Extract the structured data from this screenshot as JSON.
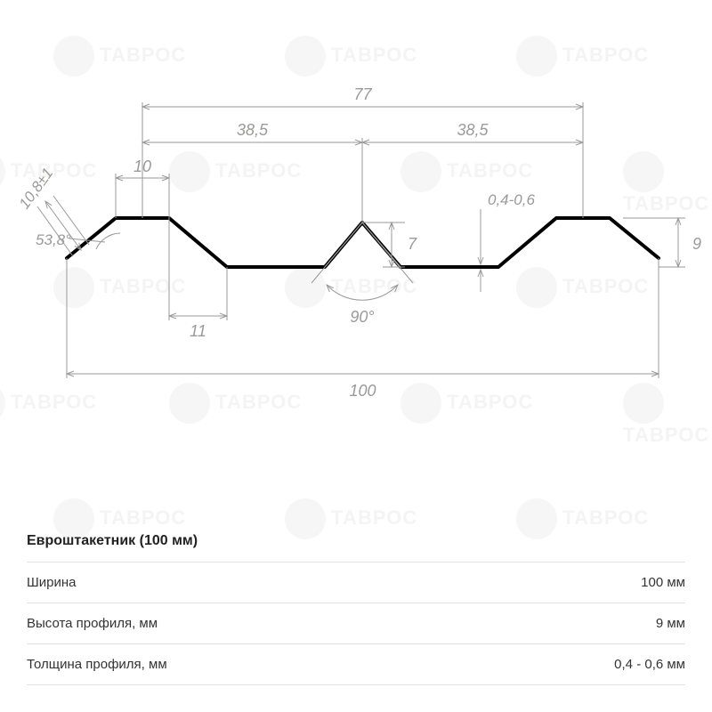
{
  "diagram": {
    "type": "technical-profile-drawing",
    "stroke_color": "#000000",
    "stroke_width": 4,
    "dim_color": "#9a9a98",
    "dim_width": 1,
    "dim_font": "italic 18px Arial",
    "background_color": "#ffffff",
    "watermark_text": "ТАВРОС",
    "watermark_color": "#f3f3f3",
    "labels": {
      "overall_width": "100",
      "top_width": "77",
      "half_left": "38,5",
      "half_right": "38,5",
      "top_flat": "10",
      "left_lip": "10,8±1",
      "left_angle": "53,8°",
      "bottom_offset": "11",
      "center_angle": "90°",
      "center_height": "7",
      "thickness": "0,4-0,6",
      "right_height": "9"
    }
  },
  "spec": {
    "title": "Евроштакетник (100 мм)",
    "rows": [
      {
        "label": "Ширина",
        "value": "100 мм"
      },
      {
        "label": "Высота профиля, мм",
        "value": "9 мм"
      },
      {
        "label": "Толщина профиля, мм",
        "value": "0,4 - 0,6 мм"
      }
    ]
  }
}
